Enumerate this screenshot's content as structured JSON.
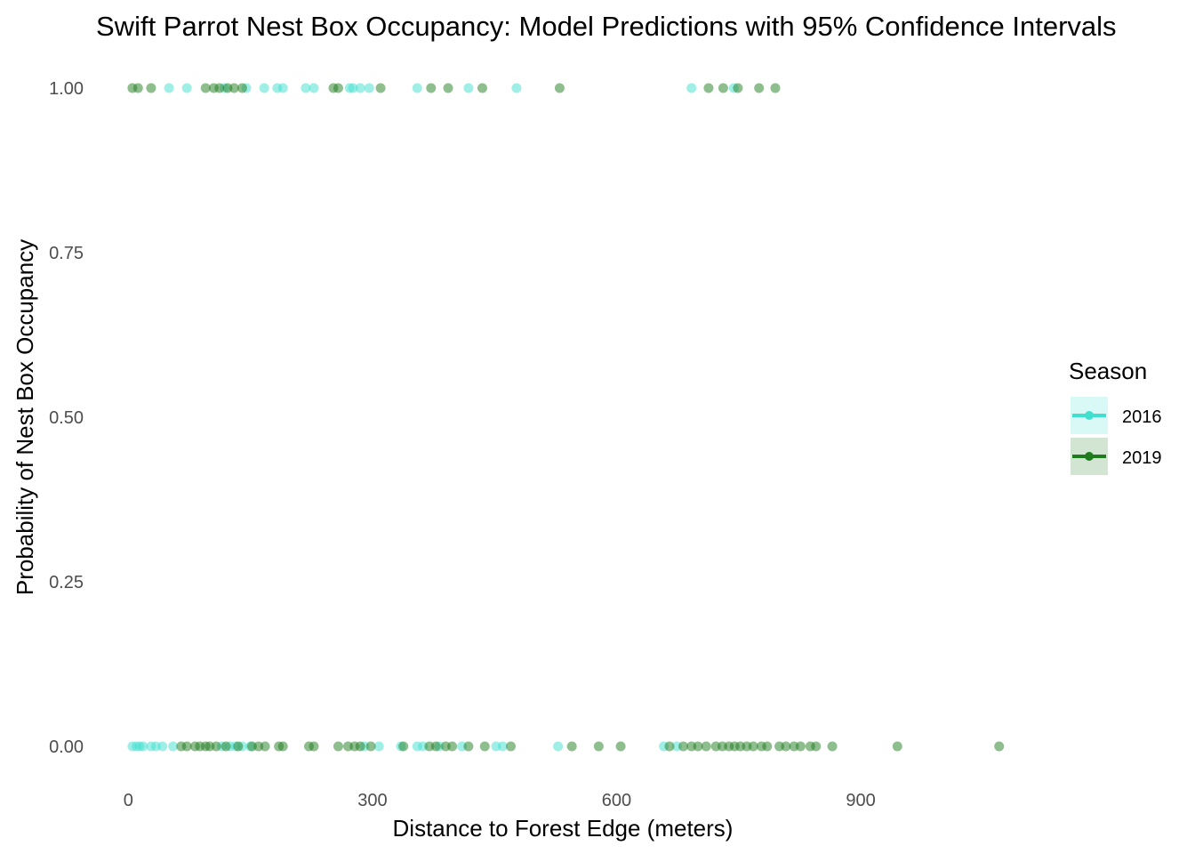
{
  "chart_data": {
    "type": "scatter",
    "title": "Swift Parrot Nest Box Occupancy: Model Predictions with 95% Confidence Intervals",
    "xlabel": "Distance to Forest Edge (meters)",
    "ylabel": "Probability of Nest Box Occupancy",
    "xlim": [
      -20,
      1090
    ],
    "ylim": [
      -0.05,
      1.05
    ],
    "x_ticks": [
      0,
      300,
      600,
      900
    ],
    "y_ticks": [
      0,
      0.25,
      0.5,
      0.75,
      1
    ],
    "x_tick_labels": [
      "0",
      "300",
      "600",
      "900"
    ],
    "y_tick_labels": [
      "0.00",
      "0.25",
      "0.50",
      "0.75",
      "1.00"
    ],
    "grid": false,
    "legend": {
      "title": "Season",
      "position": "right"
    },
    "series": [
      {
        "name": "2016",
        "color": "#40E0D0",
        "points": [
          {
            "x": 50,
            "y": 1
          },
          {
            "x": 72,
            "y": 1
          },
          {
            "x": 118,
            "y": 1
          },
          {
            "x": 145,
            "y": 1
          },
          {
            "x": 167,
            "y": 1
          },
          {
            "x": 183,
            "y": 1
          },
          {
            "x": 190,
            "y": 1
          },
          {
            "x": 218,
            "y": 1
          },
          {
            "x": 228,
            "y": 1
          },
          {
            "x": 272,
            "y": 1
          },
          {
            "x": 276,
            "y": 1
          },
          {
            "x": 285,
            "y": 1
          },
          {
            "x": 296,
            "y": 1
          },
          {
            "x": 355,
            "y": 1
          },
          {
            "x": 418,
            "y": 1
          },
          {
            "x": 477,
            "y": 1
          },
          {
            "x": 692,
            "y": 1
          },
          {
            "x": 744,
            "y": 1
          },
          {
            "x": 5,
            "y": 0
          },
          {
            "x": 10,
            "y": 0
          },
          {
            "x": 14,
            "y": 0
          },
          {
            "x": 18,
            "y": 0
          },
          {
            "x": 28,
            "y": 0
          },
          {
            "x": 34,
            "y": 0
          },
          {
            "x": 42,
            "y": 0
          },
          {
            "x": 55,
            "y": 0
          },
          {
            "x": 115,
            "y": 0
          },
          {
            "x": 125,
            "y": 0
          },
          {
            "x": 132,
            "y": 0
          },
          {
            "x": 140,
            "y": 0
          },
          {
            "x": 150,
            "y": 0
          },
          {
            "x": 290,
            "y": 0
          },
          {
            "x": 308,
            "y": 0
          },
          {
            "x": 335,
            "y": 0
          },
          {
            "x": 355,
            "y": 0
          },
          {
            "x": 362,
            "y": 0
          },
          {
            "x": 382,
            "y": 0
          },
          {
            "x": 410,
            "y": 0
          },
          {
            "x": 452,
            "y": 0
          },
          {
            "x": 460,
            "y": 0
          },
          {
            "x": 528,
            "y": 0
          },
          {
            "x": 658,
            "y": 0
          },
          {
            "x": 674,
            "y": 0
          }
        ]
      },
      {
        "name": "2019",
        "color": "#1E7B1E",
        "points": [
          {
            "x": 5,
            "y": 1
          },
          {
            "x": 12,
            "y": 1
          },
          {
            "x": 28,
            "y": 1
          },
          {
            "x": 95,
            "y": 1
          },
          {
            "x": 105,
            "y": 1
          },
          {
            "x": 112,
            "y": 1
          },
          {
            "x": 122,
            "y": 1
          },
          {
            "x": 130,
            "y": 1
          },
          {
            "x": 140,
            "y": 1
          },
          {
            "x": 252,
            "y": 1
          },
          {
            "x": 258,
            "y": 1
          },
          {
            "x": 310,
            "y": 1
          },
          {
            "x": 372,
            "y": 1
          },
          {
            "x": 393,
            "y": 1
          },
          {
            "x": 435,
            "y": 1
          },
          {
            "x": 530,
            "y": 1
          },
          {
            "x": 713,
            "y": 1
          },
          {
            "x": 731,
            "y": 1
          },
          {
            "x": 749,
            "y": 1
          },
          {
            "x": 775,
            "y": 1
          },
          {
            "x": 795,
            "y": 1
          },
          {
            "x": 65,
            "y": 0
          },
          {
            "x": 72,
            "y": 0
          },
          {
            "x": 82,
            "y": 0
          },
          {
            "x": 88,
            "y": 0
          },
          {
            "x": 95,
            "y": 0
          },
          {
            "x": 100,
            "y": 0
          },
          {
            "x": 108,
            "y": 0
          },
          {
            "x": 120,
            "y": 0
          },
          {
            "x": 135,
            "y": 0
          },
          {
            "x": 152,
            "y": 0
          },
          {
            "x": 160,
            "y": 0
          },
          {
            "x": 168,
            "y": 0
          },
          {
            "x": 185,
            "y": 0
          },
          {
            "x": 190,
            "y": 0
          },
          {
            "x": 222,
            "y": 0
          },
          {
            "x": 228,
            "y": 0
          },
          {
            "x": 258,
            "y": 0
          },
          {
            "x": 270,
            "y": 0
          },
          {
            "x": 278,
            "y": 0
          },
          {
            "x": 285,
            "y": 0
          },
          {
            "x": 298,
            "y": 0
          },
          {
            "x": 338,
            "y": 0
          },
          {
            "x": 370,
            "y": 0
          },
          {
            "x": 378,
            "y": 0
          },
          {
            "x": 390,
            "y": 0
          },
          {
            "x": 398,
            "y": 0
          },
          {
            "x": 418,
            "y": 0
          },
          {
            "x": 438,
            "y": 0
          },
          {
            "x": 470,
            "y": 0
          },
          {
            "x": 545,
            "y": 0
          },
          {
            "x": 578,
            "y": 0
          },
          {
            "x": 605,
            "y": 0
          },
          {
            "x": 665,
            "y": 0
          },
          {
            "x": 682,
            "y": 0
          },
          {
            "x": 692,
            "y": 0
          },
          {
            "x": 700,
            "y": 0
          },
          {
            "x": 710,
            "y": 0
          },
          {
            "x": 722,
            "y": 0
          },
          {
            "x": 730,
            "y": 0
          },
          {
            "x": 738,
            "y": 0
          },
          {
            "x": 745,
            "y": 0
          },
          {
            "x": 752,
            "y": 0
          },
          {
            "x": 760,
            "y": 0
          },
          {
            "x": 768,
            "y": 0
          },
          {
            "x": 778,
            "y": 0
          },
          {
            "x": 785,
            "y": 0
          },
          {
            "x": 800,
            "y": 0
          },
          {
            "x": 808,
            "y": 0
          },
          {
            "x": 818,
            "y": 0
          },
          {
            "x": 826,
            "y": 0
          },
          {
            "x": 838,
            "y": 0
          },
          {
            "x": 845,
            "y": 0
          },
          {
            "x": 865,
            "y": 0
          },
          {
            "x": 945,
            "y": 0
          },
          {
            "x": 1070,
            "y": 0
          }
        ]
      }
    ]
  }
}
